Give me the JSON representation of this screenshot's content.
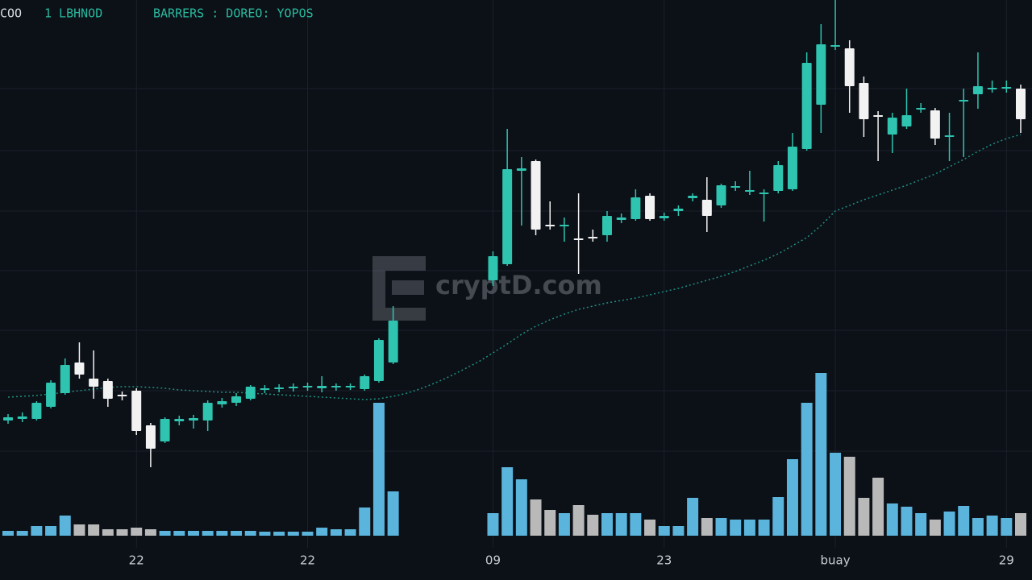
{
  "chart_data": {
    "type": "candlestick",
    "header": [
      "COO",
      "1 LBHNOD",
      "BARRERS : DOREO: YOPOS"
    ],
    "watermark": "cryptD.com",
    "categories": [
      null,
      null,
      null,
      null,
      null,
      null,
      null,
      null,
      null,
      "22",
      null,
      null,
      null,
      null,
      null,
      null,
      null,
      null,
      null,
      null,
      null,
      "22",
      null,
      null,
      null,
      null,
      null,
      null,
      null,
      null,
      null,
      null,
      null,
      null,
      "09",
      null,
      null,
      null,
      null,
      null,
      null,
      null,
      null,
      null,
      null,
      null,
      "23",
      null,
      null,
      null,
      null,
      null,
      null,
      null,
      null,
      null,
      null,
      null,
      "buay",
      null,
      null,
      null,
      null,
      null,
      null,
      null,
      null,
      null,
      null,
      null,
      "29",
      null
    ],
    "open": [
      198,
      200,
      200,
      215,
      232,
      270,
      250,
      247,
      230,
      235,
      192,
      172,
      197,
      198,
      198,
      218,
      220,
      225,
      236,
      237,
      238,
      239,
      238,
      239,
      239,
      237,
      247,
      270,
      null,
      null,
      null,
      null,
      null,
      null,
      372,
      392,
      508,
      520,
      441,
      439,
      424,
      426,
      428,
      447,
      448,
      477,
      449,
      458,
      474,
      472,
      465,
      487,
      482,
      479,
      483,
      485,
      535,
      590,
      662,
      660,
      617,
      577,
      553,
      563,
      584,
      583,
      550,
      594,
      603,
      609,
      610,
      610
    ],
    "high": [
      206,
      208,
      222,
      248,
      275,
      295,
      285,
      250,
      234,
      238,
      195,
      202,
      204,
      205,
      223,
      226,
      232,
      242,
      242,
      243,
      244,
      245,
      253,
      244,
      244,
      255,
      300,
      340,
      null,
      null,
      null,
      null,
      null,
      null,
      408,
      560,
      525,
      522,
      470,
      450,
      480,
      435,
      458,
      455,
      485,
      480,
      456,
      465,
      480,
      500,
      492,
      495,
      508,
      485,
      520,
      555,
      655,
      690,
      720,
      670,
      625,
      582,
      580,
      610,
      592,
      586,
      580,
      610,
      655,
      620,
      620,
      615
    ],
    "low": [
      194,
      196,
      198,
      213,
      230,
      250,
      225,
      215,
      223,
      180,
      140,
      170,
      192,
      188,
      185,
      214,
      216,
      223,
      232,
      233,
      234,
      235,
      233,
      235,
      236,
      235,
      245,
      268,
      null,
      null,
      null,
      null,
      null,
      null,
      365,
      390,
      440,
      428,
      435,
      420,
      380,
      420,
      420,
      443,
      446,
      446,
      446,
      452,
      470,
      432,
      462,
      483,
      478,
      445,
      480,
      483,
      533,
      555,
      658,
      580,
      550,
      520,
      530,
      560,
      580,
      540,
      520,
      525,
      585,
      605,
      605,
      555
    ],
    "close": [
      202,
      203,
      220,
      245,
      267,
      255,
      240,
      225,
      228,
      185,
      163,
      200,
      200,
      201,
      220,
      222,
      228,
      240,
      238,
      239,
      240,
      241,
      241,
      241,
      241,
      253,
      298,
      322,
      null,
      null,
      null,
      null,
      null,
      null,
      402,
      510,
      511,
      435,
      439,
      441,
      422,
      424,
      452,
      450,
      475,
      448,
      452,
      461,
      477,
      452,
      490,
      489,
      484,
      481,
      515,
      538,
      642,
      665,
      664,
      613,
      572,
      575,
      574,
      577,
      586,
      548,
      552,
      596,
      613,
      611,
      612,
      572
    ],
    "up_color": "#2ec4b0",
    "down_color": "#f2f2f2",
    "ylim": [
      0,
      720
    ],
    "ma": {
      "values": [
        227,
        228,
        229,
        231,
        233,
        235,
        237,
        239,
        240,
        240,
        239,
        238,
        236,
        235,
        234,
        233,
        233,
        232,
        231,
        230,
        229,
        228,
        227,
        226,
        225,
        224,
        225,
        228,
        232,
        238,
        245,
        253,
        262,
        271,
        282,
        293,
        305,
        315,
        323,
        330,
        336,
        340,
        344,
        347,
        350,
        354,
        358,
        362,
        367,
        372,
        377,
        383,
        390,
        397,
        405,
        415,
        425,
        440,
        458,
        465,
        472,
        478,
        484,
        490,
        497,
        504,
        513,
        522,
        532,
        541,
        548,
        553
      ],
      "color": "#1f8f80"
    },
    "volume": {
      "values": [
        6,
        6,
        12,
        12,
        25,
        14,
        14,
        8,
        8,
        10,
        8,
        6,
        6,
        6,
        6,
        6,
        6,
        6,
        5,
        5,
        5,
        5,
        10,
        8,
        8,
        35,
        165,
        55,
        null,
        null,
        null,
        null,
        null,
        null,
        28,
        85,
        70,
        45,
        32,
        28,
        38,
        26,
        28,
        28,
        28,
        20,
        12,
        12,
        47,
        22,
        22,
        20,
        20,
        20,
        48,
        95,
        165,
        202,
        103,
        98,
        47,
        72,
        40,
        36,
        28,
        20,
        30,
        37,
        22,
        25,
        22,
        28
      ],
      "up_color": "#5ab4dc",
      "down_color": "#b9b9b9"
    },
    "vlim": [
      0,
      250
    ],
    "grid": true
  }
}
